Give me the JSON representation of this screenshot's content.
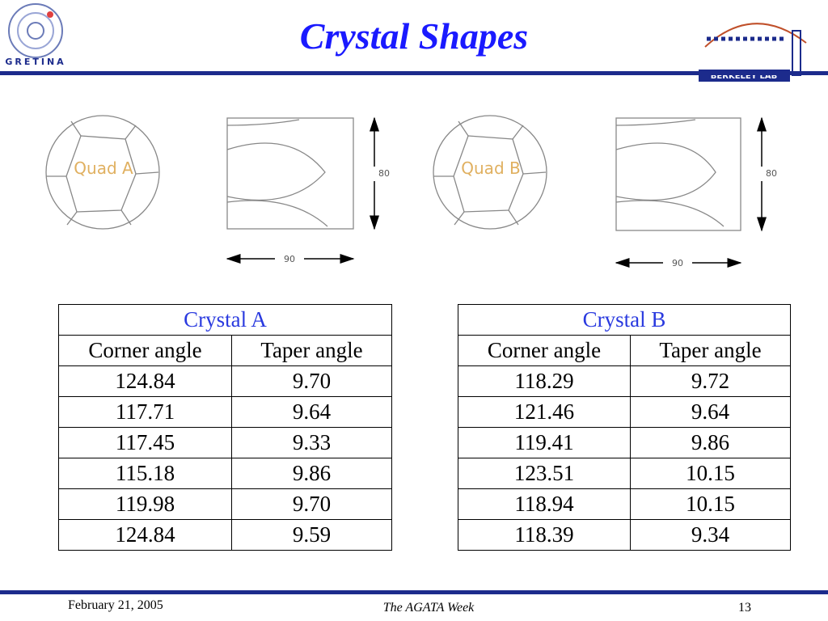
{
  "header": {
    "title": "Crystal Shapes",
    "left_logo": "GRETINA",
    "right_logo": "BERKELEY LAB"
  },
  "diagrams": [
    {
      "label": "Quad A",
      "height_label": "80",
      "width_label": "90"
    },
    {
      "label": "Quad B",
      "height_label": "80",
      "width_label": "90"
    }
  ],
  "tables": [
    {
      "title": "Crystal A",
      "columns": [
        "Corner angle",
        "Taper angle"
      ],
      "rows": [
        [
          "124.84",
          "9.70"
        ],
        [
          "117.71",
          "9.64"
        ],
        [
          "117.45",
          "9.33"
        ],
        [
          "115.18",
          "9.86"
        ],
        [
          "119.98",
          "9.70"
        ],
        [
          "124.84",
          "9.59"
        ]
      ]
    },
    {
      "title": "Crystal B",
      "columns": [
        "Corner angle",
        "Taper angle"
      ],
      "rows": [
        [
          "118.29",
          "9.72"
        ],
        [
          "121.46",
          "9.64"
        ],
        [
          "119.41",
          "9.86"
        ],
        [
          "123.51",
          "10.15"
        ],
        [
          "118.94",
          "10.15"
        ],
        [
          "118.39",
          "9.34"
        ]
      ]
    }
  ],
  "footer": {
    "date": "February 21, 2005",
    "event": "The AGATA Week",
    "page": "13"
  }
}
